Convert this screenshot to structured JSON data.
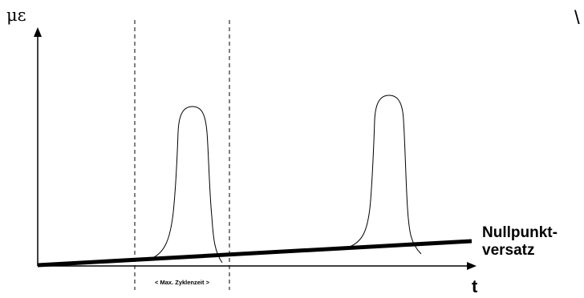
{
  "axes": {
    "y_label": "με",
    "x_label": "t"
  },
  "labels": {
    "zero_offset_line1": "Nullpunkt-",
    "zero_offset_line2": "versatz",
    "cycle_time": "< Max. Zyklenzeit >",
    "corner_mark": "\\"
  },
  "colors": {
    "line": "#000000",
    "background": "#ffffff"
  }
}
